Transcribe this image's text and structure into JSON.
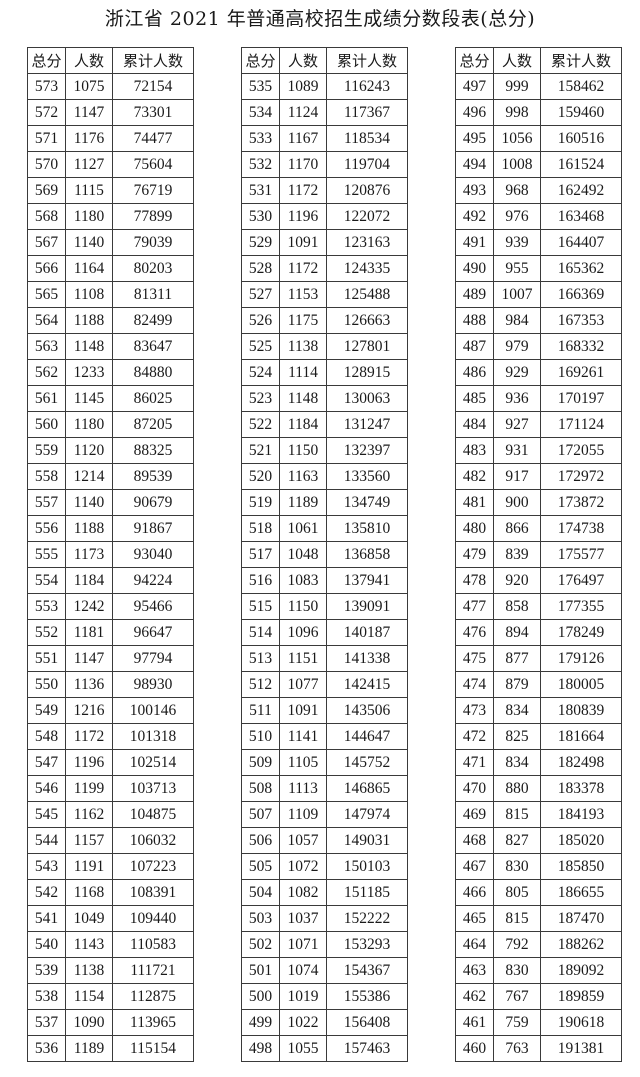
{
  "title": "浙江省 2021 年普通高校招生成绩分数段表(总分)",
  "headers": [
    "总分",
    "人数",
    "累计人数"
  ],
  "tables": [
    {
      "rows": [
        [
          "573",
          "1075",
          "72154"
        ],
        [
          "572",
          "1147",
          "73301"
        ],
        [
          "571",
          "1176",
          "74477"
        ],
        [
          "570",
          "1127",
          "75604"
        ],
        [
          "569",
          "1115",
          "76719"
        ],
        [
          "568",
          "1180",
          "77899"
        ],
        [
          "567",
          "1140",
          "79039"
        ],
        [
          "566",
          "1164",
          "80203"
        ],
        [
          "565",
          "1108",
          "81311"
        ],
        [
          "564",
          "1188",
          "82499"
        ],
        [
          "563",
          "1148",
          "83647"
        ],
        [
          "562",
          "1233",
          "84880"
        ],
        [
          "561",
          "1145",
          "86025"
        ],
        [
          "560",
          "1180",
          "87205"
        ],
        [
          "559",
          "1120",
          "88325"
        ],
        [
          "558",
          "1214",
          "89539"
        ],
        [
          "557",
          "1140",
          "90679"
        ],
        [
          "556",
          "1188",
          "91867"
        ],
        [
          "555",
          "1173",
          "93040"
        ],
        [
          "554",
          "1184",
          "94224"
        ],
        [
          "553",
          "1242",
          "95466"
        ],
        [
          "552",
          "1181",
          "96647"
        ],
        [
          "551",
          "1147",
          "97794"
        ],
        [
          "550",
          "1136",
          "98930"
        ],
        [
          "549",
          "1216",
          "100146"
        ],
        [
          "548",
          "1172",
          "101318"
        ],
        [
          "547",
          "1196",
          "102514"
        ],
        [
          "546",
          "1199",
          "103713"
        ],
        [
          "545",
          "1162",
          "104875"
        ],
        [
          "544",
          "1157",
          "106032"
        ],
        [
          "543",
          "1191",
          "107223"
        ],
        [
          "542",
          "1168",
          "108391"
        ],
        [
          "541",
          "1049",
          "109440"
        ],
        [
          "540",
          "1143",
          "110583"
        ],
        [
          "539",
          "1138",
          "111721"
        ],
        [
          "538",
          "1154",
          "112875"
        ],
        [
          "537",
          "1090",
          "113965"
        ],
        [
          "536",
          "1189",
          "115154"
        ]
      ]
    },
    {
      "rows": [
        [
          "535",
          "1089",
          "116243"
        ],
        [
          "534",
          "1124",
          "117367"
        ],
        [
          "533",
          "1167",
          "118534"
        ],
        [
          "532",
          "1170",
          "119704"
        ],
        [
          "531",
          "1172",
          "120876"
        ],
        [
          "530",
          "1196",
          "122072"
        ],
        [
          "529",
          "1091",
          "123163"
        ],
        [
          "528",
          "1172",
          "124335"
        ],
        [
          "527",
          "1153",
          "125488"
        ],
        [
          "526",
          "1175",
          "126663"
        ],
        [
          "525",
          "1138",
          "127801"
        ],
        [
          "524",
          "1114",
          "128915"
        ],
        [
          "523",
          "1148",
          "130063"
        ],
        [
          "522",
          "1184",
          "131247"
        ],
        [
          "521",
          "1150",
          "132397"
        ],
        [
          "520",
          "1163",
          "133560"
        ],
        [
          "519",
          "1189",
          "134749"
        ],
        [
          "518",
          "1061",
          "135810"
        ],
        [
          "517",
          "1048",
          "136858"
        ],
        [
          "516",
          "1083",
          "137941"
        ],
        [
          "515",
          "1150",
          "139091"
        ],
        [
          "514",
          "1096",
          "140187"
        ],
        [
          "513",
          "1151",
          "141338"
        ],
        [
          "512",
          "1077",
          "142415"
        ],
        [
          "511",
          "1091",
          "143506"
        ],
        [
          "510",
          "1141",
          "144647"
        ],
        [
          "509",
          "1105",
          "145752"
        ],
        [
          "508",
          "1113",
          "146865"
        ],
        [
          "507",
          "1109",
          "147974"
        ],
        [
          "506",
          "1057",
          "149031"
        ],
        [
          "505",
          "1072",
          "150103"
        ],
        [
          "504",
          "1082",
          "151185"
        ],
        [
          "503",
          "1037",
          "152222"
        ],
        [
          "502",
          "1071",
          "153293"
        ],
        [
          "501",
          "1074",
          "154367"
        ],
        [
          "500",
          "1019",
          "155386"
        ],
        [
          "499",
          "1022",
          "156408"
        ],
        [
          "498",
          "1055",
          "157463"
        ]
      ]
    },
    {
      "rows": [
        [
          "497",
          "999",
          "158462"
        ],
        [
          "496",
          "998",
          "159460"
        ],
        [
          "495",
          "1056",
          "160516"
        ],
        [
          "494",
          "1008",
          "161524"
        ],
        [
          "493",
          "968",
          "162492"
        ],
        [
          "492",
          "976",
          "163468"
        ],
        [
          "491",
          "939",
          "164407"
        ],
        [
          "490",
          "955",
          "165362"
        ],
        [
          "489",
          "1007",
          "166369"
        ],
        [
          "488",
          "984",
          "167353"
        ],
        [
          "487",
          "979",
          "168332"
        ],
        [
          "486",
          "929",
          "169261"
        ],
        [
          "485",
          "936",
          "170197"
        ],
        [
          "484",
          "927",
          "171124"
        ],
        [
          "483",
          "931",
          "172055"
        ],
        [
          "482",
          "917",
          "172972"
        ],
        [
          "481",
          "900",
          "173872"
        ],
        [
          "480",
          "866",
          "174738"
        ],
        [
          "479",
          "839",
          "175577"
        ],
        [
          "478",
          "920",
          "176497"
        ],
        [
          "477",
          "858",
          "177355"
        ],
        [
          "476",
          "894",
          "178249"
        ],
        [
          "475",
          "877",
          "179126"
        ],
        [
          "474",
          "879",
          "180005"
        ],
        [
          "473",
          "834",
          "180839"
        ],
        [
          "472",
          "825",
          "181664"
        ],
        [
          "471",
          "834",
          "182498"
        ],
        [
          "470",
          "880",
          "183378"
        ],
        [
          "469",
          "815",
          "184193"
        ],
        [
          "468",
          "827",
          "185020"
        ],
        [
          "467",
          "830",
          "185850"
        ],
        [
          "466",
          "805",
          "186655"
        ],
        [
          "465",
          "815",
          "187470"
        ],
        [
          "464",
          "792",
          "188262"
        ],
        [
          "463",
          "830",
          "189092"
        ],
        [
          "462",
          "767",
          "189859"
        ],
        [
          "461",
          "759",
          "190618"
        ],
        [
          "460",
          "763",
          "191381"
        ]
      ]
    }
  ]
}
